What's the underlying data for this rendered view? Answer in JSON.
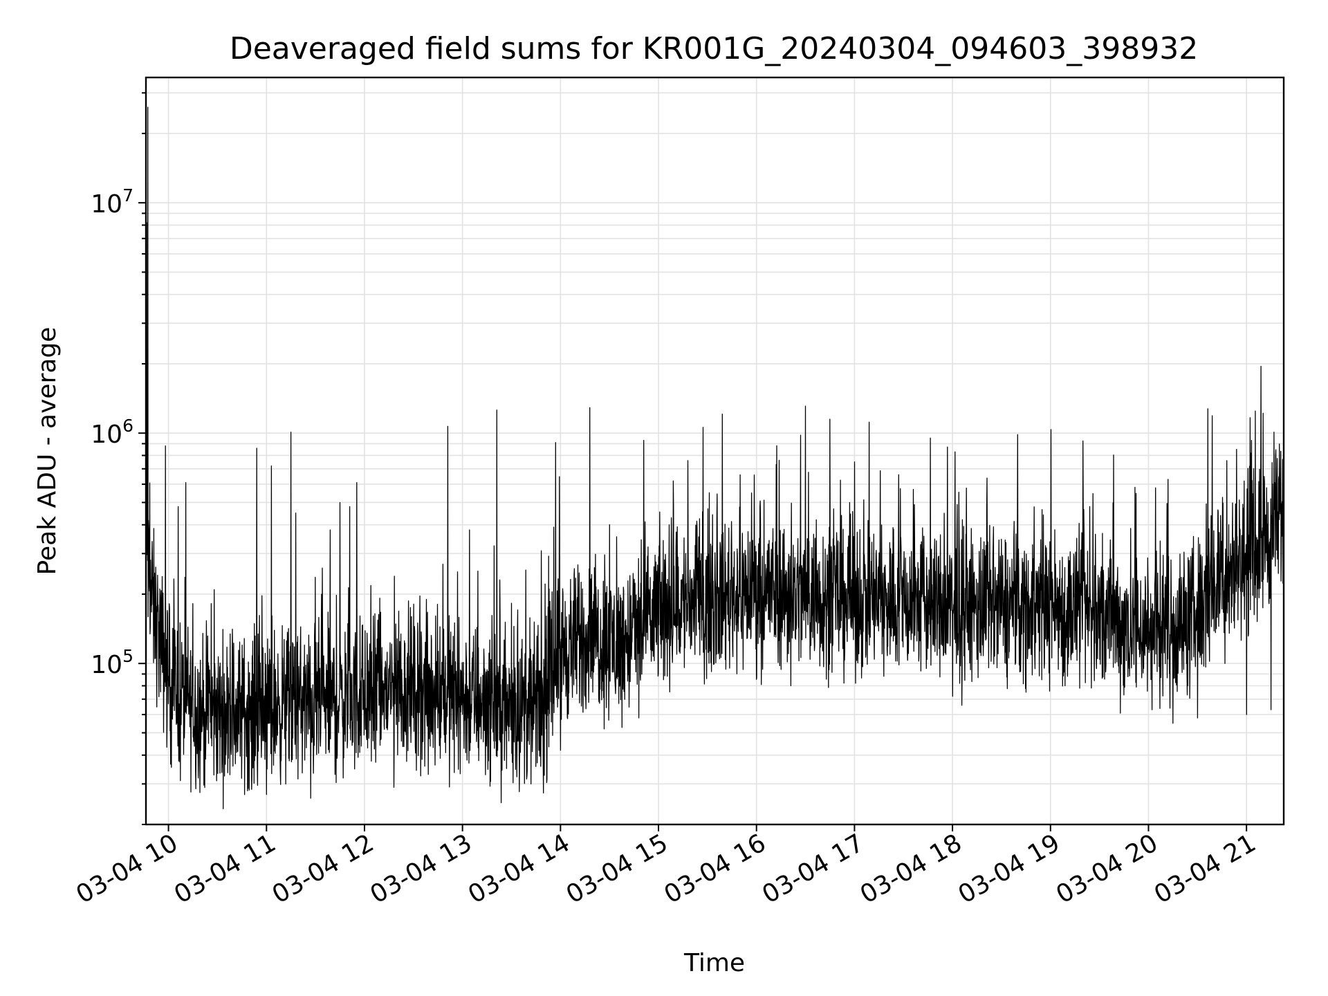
{
  "chart_data": {
    "type": "line",
    "title": "Deaveraged field sums for KR001G_20240304_094603_398932",
    "xlabel": "Time",
    "ylabel": "Peak ADU - average",
    "yscale": "log",
    "ylim": [
      20000,
      35000000
    ],
    "xlim_hours": [
      9.77,
      21.38
    ],
    "x_ticks": [
      {
        "value": 10,
        "label": "03-04 10"
      },
      {
        "value": 11,
        "label": "03-04 11"
      },
      {
        "value": 12,
        "label": "03-04 12"
      },
      {
        "value": 13,
        "label": "03-04 13"
      },
      {
        "value": 14,
        "label": "03-04 14"
      },
      {
        "value": 15,
        "label": "03-04 15"
      },
      {
        "value": 16,
        "label": "03-04 16"
      },
      {
        "value": 17,
        "label": "03-04 17"
      },
      {
        "value": 18,
        "label": "03-04 18"
      },
      {
        "value": 19,
        "label": "03-04 19"
      },
      {
        "value": 20,
        "label": "03-04 20"
      },
      {
        "value": 21,
        "label": "03-04 21"
      }
    ],
    "y_ticks": [
      {
        "value": 100000,
        "base": "10",
        "exp": "5"
      },
      {
        "value": 1000000,
        "base": "10",
        "exp": "6"
      },
      {
        "value": 10000000,
        "base": "10",
        "exp": "7"
      }
    ],
    "grid": true,
    "series": [
      {
        "name": "deaveraged field sum",
        "color": "#000000",
        "baseline": [
          [
            9.77,
            300000
          ],
          [
            9.85,
            170000
          ],
          [
            10.0,
            85000
          ],
          [
            10.3,
            62000
          ],
          [
            10.6,
            60000
          ],
          [
            11.0,
            65000
          ],
          [
            11.5,
            68000
          ],
          [
            12.0,
            72000
          ],
          [
            12.5,
            78000
          ],
          [
            13.0,
            72000
          ],
          [
            13.5,
            65000
          ],
          [
            13.85,
            65000
          ],
          [
            13.95,
            110000
          ],
          [
            14.3,
            130000
          ],
          [
            14.6,
            120000
          ],
          [
            14.9,
            150000
          ],
          [
            15.0,
            175000
          ],
          [
            15.5,
            190000
          ],
          [
            16.0,
            210000
          ],
          [
            16.5,
            200000
          ],
          [
            17.0,
            190000
          ],
          [
            17.5,
            190000
          ],
          [
            18.0,
            170000
          ],
          [
            18.5,
            175000
          ],
          [
            19.0,
            180000
          ],
          [
            19.5,
            160000
          ],
          [
            20.0,
            140000
          ],
          [
            20.4,
            150000
          ],
          [
            20.7,
            220000
          ],
          [
            21.0,
            290000
          ],
          [
            21.38,
            430000
          ]
        ],
        "peaks": [
          [
            9.79,
            26000000
          ],
          [
            9.785,
            8200000
          ],
          [
            9.97,
            880000
          ],
          [
            10.1,
            480000
          ],
          [
            10.9,
            860000
          ],
          [
            11.05,
            720000
          ],
          [
            11.25,
            1010000
          ],
          [
            11.3,
            450000
          ],
          [
            11.65,
            380000
          ],
          [
            11.75,
            500000
          ],
          [
            11.85,
            480000
          ],
          [
            11.92,
            610000
          ],
          [
            12.8,
            270000
          ],
          [
            12.85,
            1070000
          ],
          [
            13.07,
            380000
          ],
          [
            13.35,
            1260000
          ],
          [
            13.95,
            910000
          ],
          [
            14.3,
            1290000
          ],
          [
            14.5,
            400000
          ],
          [
            14.85,
            930000
          ],
          [
            15.15,
            620000
          ],
          [
            15.3,
            760000
          ],
          [
            15.65,
            1210000
          ],
          [
            15.95,
            550000
          ],
          [
            16.2,
            730000
          ],
          [
            16.45,
            980000
          ],
          [
            16.5,
            1310000
          ],
          [
            16.75,
            1150000
          ],
          [
            16.95,
            500000
          ],
          [
            17.0,
            750000
          ],
          [
            17.45,
            660000
          ],
          [
            17.6,
            570000
          ],
          [
            17.95,
            870000
          ],
          [
            18.35,
            480000
          ],
          [
            19.15,
            760000
          ],
          [
            19.4,
            480000
          ],
          [
            19.75,
            850000
          ],
          [
            20.2,
            630000
          ],
          [
            20.45,
            300000
          ],
          [
            20.65,
            1190000
          ],
          [
            20.8,
            760000
          ],
          [
            20.9,
            850000
          ],
          [
            21.05,
            930000
          ],
          [
            21.17,
            1220000
          ],
          [
            21.28,
            1010000
          ]
        ],
        "dips": [
          [
            10.12,
            31000
          ],
          [
            10.85,
            32000
          ],
          [
            11.0,
            27000
          ],
          [
            11.45,
            26000
          ],
          [
            11.7,
            33000
          ],
          [
            12.3,
            29000
          ],
          [
            12.65,
            33000
          ],
          [
            13.45,
            35000
          ],
          [
            13.7,
            30000
          ],
          [
            14.0,
            42000
          ],
          [
            14.8,
            58000
          ],
          [
            15.05,
            85000
          ],
          [
            16.35,
            80000
          ],
          [
            17.3,
            88000
          ],
          [
            18.0,
            72000
          ],
          [
            18.75,
            75000
          ],
          [
            19.15,
            80000
          ],
          [
            19.75,
            73000
          ],
          [
            20.25,
            55000
          ],
          [
            20.5,
            58000
          ],
          [
            21.0,
            60000
          ],
          [
            21.25,
            63000
          ]
        ]
      }
    ]
  }
}
